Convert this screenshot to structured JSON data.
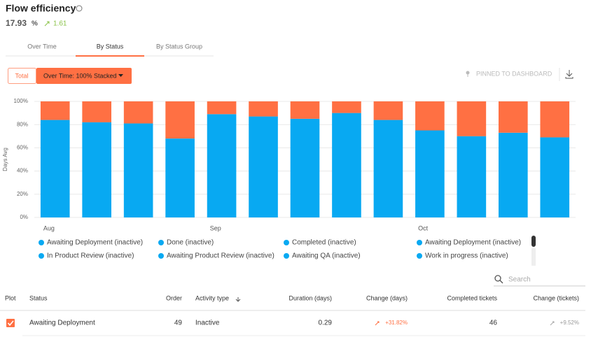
{
  "header": {
    "title": "Flow efficiency",
    "value": "17.93",
    "unit": "%",
    "change": "1.61"
  },
  "tabs": [
    "Over Time",
    "By Status",
    "By Status Group"
  ],
  "controls": {
    "total": "Total",
    "mode": "Over Time: 100% Stacked",
    "pinned": "PINNED TO DASHBOARD"
  },
  "chart_data": {
    "type": "stacked-bar",
    "y_label": "Days Avg",
    "categories": [
      "Aug",
      null,
      null,
      null,
      "Sep",
      null,
      null,
      null,
      null,
      "Oct",
      null,
      null,
      null
    ],
    "series": [
      {
        "color": "#08a9f2",
        "values": [
          84,
          82,
          81,
          68,
          89,
          87,
          85,
          90,
          84,
          75,
          70,
          73,
          69
        ]
      },
      {
        "color": "#ff7043",
        "values": [
          16,
          18,
          19,
          32,
          11,
          13,
          15,
          10,
          16,
          25,
          30,
          27,
          31
        ]
      }
    ],
    "ylim": [
      0,
      100
    ],
    "yticks": [
      {
        "value": 0,
        "label": "0%"
      },
      {
        "value": 20,
        "label": "20%"
      },
      {
        "value": 40,
        "label": "40%"
      },
      {
        "value": 60,
        "label": "60%"
      },
      {
        "value": 80,
        "label": "80%"
      },
      {
        "value": 100,
        "label": "100%"
      }
    ],
    "grid": true
  },
  "legend": [
    "Awaiting Deployment (inactive)",
    "Done (inactive)",
    "Completed (inactive)",
    "Awaiting Deployment (inactive)",
    "In Product Review (inactive)",
    "Awaiting Product Review (inactive)",
    "Awaiting QA (inactive)",
    "Work in progress (inactive)"
  ],
  "search_placeholder": "Search",
  "table": {
    "columns": [
      "Plot",
      "Status",
      "Order",
      "Activity type",
      "Duration (days)",
      "Change (days)",
      "Completed tickets",
      "Change (tickets)"
    ],
    "rows": [
      [
        "Awaiting Deployment",
        49,
        "Inactive",
        0.29,
        "+31.82%",
        46,
        "+9.52%"
      ]
    ]
  }
}
